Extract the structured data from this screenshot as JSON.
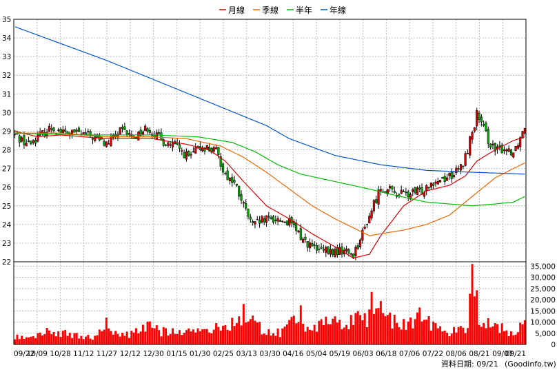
{
  "chart_data": [
    {
      "type": "candlestick",
      "legend": [
        "月線",
        "季線",
        "半年",
        "年線"
      ],
      "legend_placement": "top-center",
      "series_colors": {
        "月線": "#dd0000",
        "季線": "#ee6600",
        "半年": "#00bb00",
        "年線": "#0055cc"
      },
      "candle_colors": {
        "up": "#dd0000",
        "down": "#00aa00"
      },
      "ylim": [
        22,
        35
      ],
      "y_ticks": [
        "22",
        "23",
        "24",
        "25",
        "26",
        "27",
        "28",
        "29",
        "30",
        "31",
        "32",
        "33",
        "34",
        "35"
      ],
      "x_ticks": [
        "09/22",
        "10/09",
        "10/28",
        "11/12",
        "11/27",
        "12/12",
        "12/30",
        "01/15",
        "01/30",
        "02/25",
        "03/13",
        "03/30",
        "04/16",
        "05/04",
        "05/19",
        "06/03",
        "06/18",
        "07/06",
        "07/22",
        "08/06",
        "08/21",
        "09/07",
        "09/21"
      ],
      "grid": true,
      "close_anchors": [
        [
          0,
          28.8
        ],
        [
          6,
          28.3
        ],
        [
          10,
          28.7
        ],
        [
          16,
          29.2
        ],
        [
          22,
          28.9
        ],
        [
          28,
          28.9
        ],
        [
          34,
          28.7
        ],
        [
          40,
          28.3
        ],
        [
          46,
          29.0
        ],
        [
          52,
          28.7
        ],
        [
          58,
          29.2
        ],
        [
          64,
          28.5
        ],
        [
          70,
          28.2
        ],
        [
          76,
          27.6
        ],
        [
          82,
          28.2
        ],
        [
          88,
          27.9
        ],
        [
          92,
          26.7
        ],
        [
          96,
          26.2
        ],
        [
          100,
          25.0
        ],
        [
          104,
          23.9
        ],
        [
          108,
          24.2
        ],
        [
          114,
          24.3
        ],
        [
          120,
          24.1
        ],
        [
          126,
          23.2
        ],
        [
          132,
          22.6
        ],
        [
          138,
          22.5
        ],
        [
          144,
          22.6
        ],
        [
          148,
          22.4
        ],
        [
          152,
          23.5
        ],
        [
          156,
          24.8
        ],
        [
          160,
          26.0
        ],
        [
          166,
          25.7
        ],
        [
          172,
          25.6
        ],
        [
          178,
          25.8
        ],
        [
          182,
          26.3
        ],
        [
          188,
          26.5
        ],
        [
          193,
          26.8
        ],
        [
          196,
          27.2
        ],
        [
          199,
          28.5
        ],
        [
          202,
          29.9
        ],
        [
          206,
          28.8
        ],
        [
          210,
          27.9
        ],
        [
          214,
          28.1
        ],
        [
          218,
          27.9
        ],
        [
          221,
          28.7
        ],
        [
          223,
          29.3
        ]
      ],
      "ma_month": [
        [
          0,
          29.0
        ],
        [
          10,
          28.7
        ],
        [
          20,
          28.8
        ],
        [
          40,
          28.6
        ],
        [
          60,
          28.6
        ],
        [
          75,
          28.3
        ],
        [
          85,
          28.0
        ],
        [
          92,
          27.4
        ],
        [
          100,
          26.3
        ],
        [
          110,
          25.0
        ],
        [
          120,
          24.3
        ],
        [
          130,
          23.5
        ],
        [
          140,
          22.8
        ],
        [
          148,
          22.2
        ],
        [
          155,
          22.4
        ],
        [
          160,
          23.4
        ],
        [
          170,
          25.0
        ],
        [
          180,
          25.8
        ],
        [
          190,
          26.1
        ],
        [
          197,
          26.6
        ],
        [
          202,
          27.4
        ],
        [
          210,
          28.0
        ],
        [
          218,
          28.5
        ],
        [
          223,
          28.7
        ]
      ],
      "ma_quarter": [
        [
          0,
          28.9
        ],
        [
          20,
          28.9
        ],
        [
          40,
          28.7
        ],
        [
          60,
          28.7
        ],
        [
          75,
          28.6
        ],
        [
          90,
          28.2
        ],
        [
          100,
          27.6
        ],
        [
          110,
          26.8
        ],
        [
          120,
          25.9
        ],
        [
          130,
          25.0
        ],
        [
          140,
          24.3
        ],
        [
          150,
          23.7
        ],
        [
          155,
          23.4
        ],
        [
          160,
          23.5
        ],
        [
          170,
          23.7
        ],
        [
          180,
          24.0
        ],
        [
          190,
          24.5
        ],
        [
          200,
          25.5
        ],
        [
          210,
          26.5
        ],
        [
          218,
          27.0
        ],
        [
          223,
          27.3
        ]
      ],
      "ma_half": [
        [
          0,
          28.9
        ],
        [
          30,
          28.8
        ],
        [
          60,
          28.8
        ],
        [
          80,
          28.7
        ],
        [
          95,
          28.4
        ],
        [
          105,
          27.9
        ],
        [
          115,
          27.2
        ],
        [
          125,
          26.7
        ],
        [
          140,
          26.3
        ],
        [
          155,
          25.9
        ],
        [
          165,
          25.6
        ],
        [
          180,
          25.2
        ],
        [
          190,
          25.1
        ],
        [
          200,
          25.0
        ],
        [
          210,
          25.1
        ],
        [
          218,
          25.2
        ],
        [
          223,
          25.5
        ]
      ],
      "ma_year": [
        [
          0,
          34.6
        ],
        [
          20,
          33.7
        ],
        [
          40,
          32.8
        ],
        [
          60,
          31.8
        ],
        [
          80,
          30.8
        ],
        [
          100,
          29.8
        ],
        [
          110,
          29.3
        ],
        [
          120,
          28.6
        ],
        [
          140,
          27.7
        ],
        [
          160,
          27.2
        ],
        [
          180,
          26.9
        ],
        [
          200,
          26.8
        ],
        [
          223,
          26.7
        ]
      ]
    },
    {
      "type": "bar",
      "ylim": [
        0,
        37000
      ],
      "y_ticks": [
        "0",
        "5,000",
        "10,000",
        "15,000",
        "20,000",
        "25,000",
        "30,000",
        "35,000"
      ],
      "volume_anchors": [
        [
          0,
          3500
        ],
        [
          10,
          5000
        ],
        [
          16,
          7000
        ],
        [
          20,
          5500
        ],
        [
          30,
          4000
        ],
        [
          36,
          3500
        ],
        [
          40,
          12000
        ],
        [
          44,
          5500
        ],
        [
          50,
          4500
        ],
        [
          60,
          10000
        ],
        [
          64,
          6000
        ],
        [
          70,
          8000
        ],
        [
          76,
          6500
        ],
        [
          82,
          8000
        ],
        [
          86,
          7000
        ],
        [
          92,
          9000
        ],
        [
          96,
          12000
        ],
        [
          100,
          15000
        ],
        [
          104,
          10500
        ],
        [
          110,
          7000
        ],
        [
          116,
          5500
        ],
        [
          122,
          13000
        ],
        [
          126,
          10000
        ],
        [
          132,
          9000
        ],
        [
          138,
          10500
        ],
        [
          144,
          9500
        ],
        [
          150,
          15000
        ],
        [
          154,
          12000
        ],
        [
          158,
          21000
        ],
        [
          162,
          15000
        ],
        [
          168,
          9000
        ],
        [
          174,
          11000
        ],
        [
          178,
          18000
        ],
        [
          182,
          10000
        ],
        [
          188,
          6000
        ],
        [
          194,
          7000
        ],
        [
          198,
          9000
        ],
        [
          200,
          36000
        ],
        [
          202,
          22000
        ],
        [
          204,
          9000
        ],
        [
          208,
          12000
        ],
        [
          212,
          9000
        ],
        [
          216,
          5000
        ],
        [
          220,
          6000
        ],
        [
          222,
          11500
        ],
        [
          223,
          9000
        ]
      ]
    }
  ],
  "footer": {
    "date_label": "資料日期: 09/21",
    "source_label": "(Goodinfo.tw)"
  }
}
